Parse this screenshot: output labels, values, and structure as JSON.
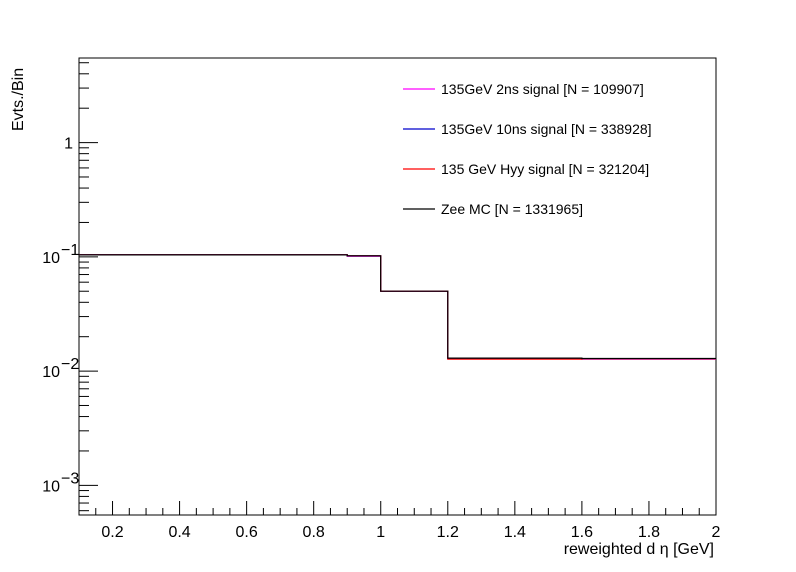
{
  "chart_data": {
    "type": "line",
    "xlabel": "reweighted d η [GeV]",
    "ylabel": "Evts./Bin",
    "x_scale": "linear",
    "y_scale": "log",
    "xlim": [
      0.1,
      2.0
    ],
    "ylim": [
      0.00055,
      5.5
    ],
    "bin_edges": [
      0.1,
      0.9,
      1.0,
      1.2,
      1.6,
      2.0
    ],
    "x_ticks": [
      {
        "value": 0.2,
        "label": "0.2"
      },
      {
        "value": 0.4,
        "label": "0.4"
      },
      {
        "value": 0.6,
        "label": "0.6"
      },
      {
        "value": 0.8,
        "label": "0.8"
      },
      {
        "value": 1.0,
        "label": "1"
      },
      {
        "value": 1.2,
        "label": "1.2"
      },
      {
        "value": 1.4,
        "label": "1.4"
      },
      {
        "value": 1.6,
        "label": "1.6"
      },
      {
        "value": 1.8,
        "label": "1.8"
      },
      {
        "value": 2.0,
        "label": "2"
      }
    ],
    "y_ticks": [
      {
        "value": 0.001,
        "base": "10",
        "exp": "−3"
      },
      {
        "value": 0.01,
        "base": "10",
        "exp": "−2"
      },
      {
        "value": 0.1,
        "base": "10",
        "exp": "−1"
      },
      {
        "value": 1,
        "base": "1",
        "exp": ""
      }
    ],
    "legend_position": "top-right",
    "grid": false,
    "series": [
      {
        "name": "135GeV 2ns signal [N = 109907]",
        "color": "#ff00ff",
        "values": [
          0.104,
          0.101,
          0.05,
          0.0129,
          0.0127
        ]
      },
      {
        "name": "135GeV 10ns signal [N = 338928]",
        "color": "#0000cc",
        "values": [
          0.104,
          0.102,
          0.05,
          0.0129,
          0.0128
        ]
      },
      {
        "name": "135 GeV Hyy signal [N = 321204]",
        "color": "#ff0000",
        "values": [
          0.104,
          0.102,
          0.05,
          0.0127,
          0.0128
        ]
      },
      {
        "name": "Zee MC [N = 1331965]",
        "color": "#000000",
        "values": [
          0.104,
          0.102,
          0.05,
          0.013,
          0.0129
        ]
      }
    ]
  }
}
